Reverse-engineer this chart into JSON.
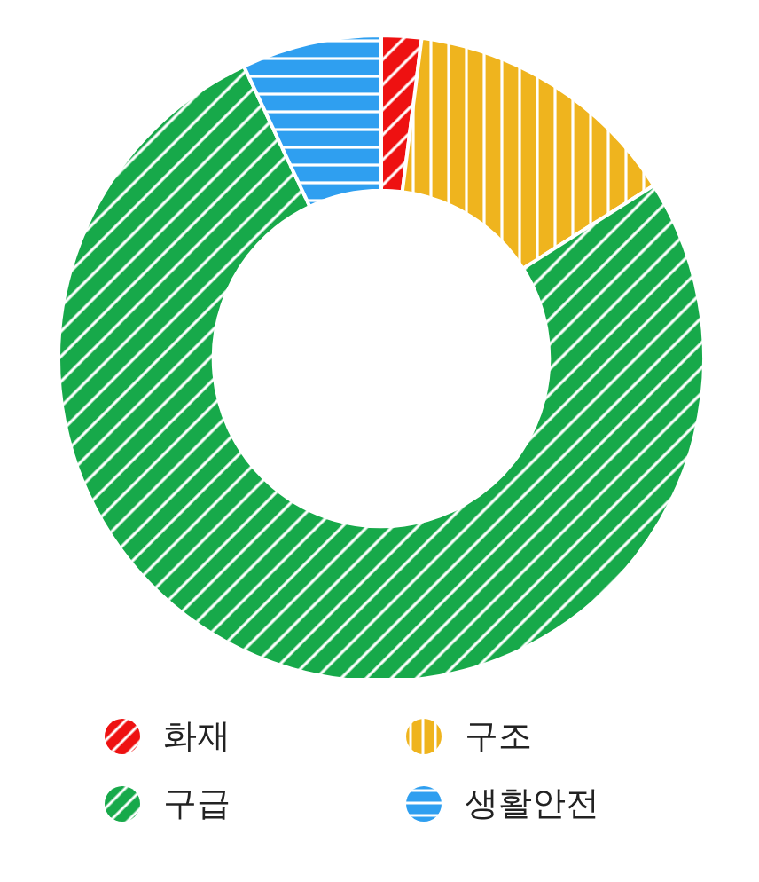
{
  "chart_data": {
    "type": "donut",
    "categories": [
      "화재",
      "구조",
      "구급",
      "생활안전"
    ],
    "values": [
      2,
      14,
      77,
      7
    ],
    "colors": [
      "#ee1111",
      "#efb41e",
      "#17a94a",
      "#2f9ff0"
    ],
    "legend": "bottom"
  }
}
